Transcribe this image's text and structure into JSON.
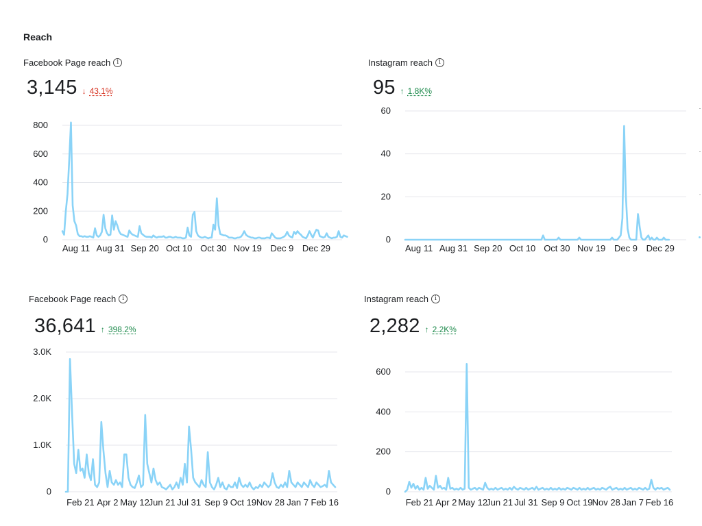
{
  "page": {
    "section_title": "Reach"
  },
  "colors": {
    "line": "#8ad3f7",
    "grid": "#e4e6eb",
    "axis_text": "#1c1e21",
    "down": "#d6311f",
    "up": "#1e8a4c"
  },
  "panels": [
    {
      "label": "Facebook Page reach",
      "value": "3,145",
      "delta_arrow": "↓",
      "delta": "43.1%",
      "delta_dir": "down"
    },
    {
      "label": "Instagram reach",
      "value": "95",
      "delta_arrow": "↑",
      "delta": "1.8K%",
      "delta_dir": "up"
    },
    {
      "label": "Facebook Page reach",
      "value": "36,641",
      "delta_arrow": "↑",
      "delta": "398.2%",
      "delta_dir": "up"
    },
    {
      "label": "Instagram reach",
      "value": "2,282",
      "delta_arrow": "↑",
      "delta": "2.2K%",
      "delta_dir": "up"
    }
  ],
  "chart_data": [
    {
      "type": "line",
      "title": "Facebook Page reach",
      "ylim": [
        0,
        800
      ],
      "yticks": [
        0,
        200,
        400,
        600,
        800
      ],
      "ytick_labels": [
        "0",
        "200",
        "400",
        "600",
        "800"
      ],
      "x_tick_labels": [
        "Aug 11",
        "Aug 31",
        "Sep 20",
        "Oct 10",
        "Oct 30",
        "Nov 19",
        "Dec 9",
        "Dec 29"
      ],
      "x_tick_positions": [
        8,
        28,
        48,
        68,
        88,
        108,
        128,
        148
      ],
      "x_range": [
        0,
        163
      ],
      "series": [
        {
          "name": "Facebook Page reach",
          "values": [
            60,
            35,
            200,
            320,
            560,
            820,
            240,
            130,
            100,
            40,
            25,
            25,
            20,
            25,
            20,
            20,
            25,
            20,
            15,
            80,
            30,
            20,
            30,
            55,
            175,
            80,
            45,
            30,
            35,
            170,
            70,
            130,
            100,
            60,
            40,
            35,
            30,
            25,
            20,
            65,
            45,
            35,
            30,
            25,
            20,
            95,
            45,
            35,
            25,
            20,
            20,
            20,
            15,
            30,
            20,
            15,
            20,
            20,
            20,
            25,
            15,
            15,
            20,
            20,
            15,
            15,
            20,
            15,
            15,
            15,
            10,
            10,
            15,
            85,
            30,
            20,
            175,
            195,
            60,
            30,
            20,
            15,
            15,
            20,
            15,
            10,
            15,
            15,
            105,
            70,
            290,
            100,
            40,
            35,
            30,
            30,
            25,
            15,
            15,
            15,
            10,
            10,
            15,
            15,
            20,
            35,
            60,
            35,
            25,
            20,
            15,
            15,
            10,
            10,
            15,
            15,
            10,
            10,
            10,
            15,
            15,
            10,
            45,
            30,
            15,
            10,
            10,
            10,
            15,
            20,
            30,
            55,
            30,
            20,
            15,
            55,
            40,
            60,
            45,
            35,
            20,
            15,
            10,
            30,
            60,
            35,
            15,
            45,
            70,
            65,
            25,
            20,
            15,
            20,
            45,
            20,
            15,
            10,
            15,
            15,
            20,
            60,
            20,
            15,
            30,
            25,
            20
          ]
        }
      ]
    },
    {
      "type": "line",
      "title": "Instagram reach",
      "ylim": [
        0,
        60
      ],
      "yticks": [
        0,
        20,
        40,
        60
      ],
      "ytick_labels": [
        "0",
        "20",
        "40",
        "60"
      ],
      "x_tick_labels": [
        "Aug 11",
        "Aug 31",
        "Sep 20",
        "Oct 10",
        "Oct 30",
        "Nov 19",
        "Dec 9",
        "Dec 29"
      ],
      "x_tick_positions": [
        8,
        28,
        48,
        68,
        88,
        108,
        128,
        148
      ],
      "x_range": [
        0,
        163
      ],
      "series": [
        {
          "name": "Instagram reach",
          "values": [
            0,
            0,
            0,
            0,
            0,
            0,
            0,
            0,
            0,
            0,
            0,
            0,
            0,
            0,
            0,
            0,
            0,
            0,
            0,
            0,
            0,
            0,
            0,
            0,
            0,
            0,
            0,
            0,
            0,
            0,
            0,
            0,
            0,
            0,
            0,
            0,
            0,
            0,
            0,
            0,
            0,
            0,
            0,
            0,
            0,
            0,
            0,
            0,
            0,
            0,
            0,
            0,
            0,
            0,
            0,
            0,
            0,
            0,
            0,
            0,
            0,
            0,
            0,
            0,
            0,
            0,
            0,
            0,
            0,
            0,
            0,
            0,
            0,
            0,
            0,
            0,
            0,
            0,
            0,
            0,
            2,
            0,
            0,
            0,
            0,
            0,
            0,
            0,
            0,
            1,
            0,
            0,
            0,
            0,
            0,
            0,
            0,
            0,
            0,
            0,
            0,
            1,
            0,
            0,
            0,
            0,
            0,
            0,
            0,
            0,
            0,
            0,
            0,
            0,
            0,
            0,
            0,
            0,
            0,
            0,
            1,
            0,
            0,
            0,
            1,
            2,
            10,
            53,
            20,
            5,
            1,
            0,
            0,
            0,
            0,
            12,
            6,
            1,
            0,
            0,
            1,
            2,
            0,
            1,
            0,
            0,
            1,
            0,
            0,
            0,
            1,
            0,
            0,
            0
          ]
        }
      ]
    },
    {
      "type": "line",
      "title": "Facebook Page reach",
      "ylim": [
        0,
        3000
      ],
      "yticks": [
        0,
        1000,
        2000,
        3000
      ],
      "ytick_labels": [
        "0",
        "1.0K",
        "2.0K",
        "3.0K"
      ],
      "x_tick_labels": [
        "Feb 21",
        "Apr 2",
        "May 12",
        "Jun 21",
        "Jul 31",
        "Sep 9",
        "Oct 19",
        "Nov 28",
        "Jan 7",
        "Feb 16"
      ],
      "x_tick_positions": [
        7,
        20,
        33,
        46,
        59,
        72,
        85,
        98,
        111,
        124
      ],
      "x_range": [
        0,
        130
      ],
      "series": [
        {
          "name": "Facebook Page reach",
          "values": [
            0,
            0,
            2850,
            1700,
            600,
            400,
            900,
            450,
            500,
            300,
            800,
            400,
            250,
            700,
            150,
            100,
            200,
            1500,
            900,
            400,
            100,
            450,
            200,
            150,
            250,
            150,
            200,
            100,
            800,
            800,
            300,
            150,
            100,
            80,
            200,
            350,
            100,
            150,
            1650,
            600,
            400,
            200,
            500,
            250,
            150,
            200,
            100,
            80,
            50,
            100,
            150,
            50,
            100,
            200,
            80,
            300,
            150,
            600,
            200,
            1400,
            900,
            300,
            200,
            150,
            100,
            250,
            150,
            100,
            850,
            200,
            100,
            50,
            150,
            300,
            100,
            200,
            80,
            50,
            150,
            100,
            100,
            200,
            80,
            300,
            150,
            100,
            150,
            100,
            200,
            100,
            50,
            100,
            80,
            150,
            100,
            200,
            150,
            100,
            150,
            400,
            200,
            100,
            80,
            150,
            100,
            200,
            100,
            450,
            200,
            150,
            100,
            200,
            150,
            100,
            200,
            150,
            100,
            250,
            150,
            100,
            200,
            150,
            100,
            120,
            150,
            100,
            450,
            200,
            150,
            100
          ]
        }
      ]
    },
    {
      "type": "line",
      "title": "Instagram reach",
      "ylim": [
        0,
        600
      ],
      "yticks": [
        0,
        200,
        400,
        600
      ],
      "ytick_labels": [
        "0",
        "200",
        "400",
        "600"
      ],
      "x_tick_labels": [
        "Feb 21",
        "Apr 2",
        "May 12",
        "Jun 21",
        "Jul 31",
        "Sep 9",
        "Oct 19",
        "Nov 28",
        "Jan 7",
        "Feb 16"
      ],
      "x_tick_positions": [
        7,
        20,
        33,
        46,
        59,
        72,
        85,
        98,
        111,
        124
      ],
      "x_range": [
        0,
        130
      ],
      "series": [
        {
          "name": "Instagram reach",
          "values": [
            0,
            10,
            50,
            20,
            40,
            15,
            30,
            10,
            20,
            10,
            70,
            15,
            30,
            20,
            10,
            80,
            20,
            30,
            15,
            20,
            10,
            70,
            15,
            20,
            10,
            15,
            10,
            20,
            10,
            15,
            640,
            20,
            10,
            15,
            20,
            10,
            20,
            15,
            10,
            45,
            20,
            10,
            15,
            10,
            20,
            10,
            15,
            20,
            10,
            15,
            10,
            20,
            10,
            25,
            15,
            10,
            20,
            15,
            10,
            20,
            10,
            15,
            20,
            10,
            25,
            10,
            15,
            20,
            10,
            15,
            10,
            20,
            10,
            15,
            10,
            20,
            10,
            15,
            10,
            20,
            15,
            10,
            20,
            15,
            10,
            20,
            10,
            15,
            10,
            20,
            10,
            15,
            20,
            10,
            15,
            10,
            20,
            15,
            10,
            20,
            25,
            10,
            15,
            20,
            10,
            15,
            10,
            20,
            10,
            15,
            20,
            10,
            15,
            10,
            20,
            15,
            10,
            20,
            10,
            15,
            60,
            20,
            10,
            20,
            15,
            20,
            10,
            15,
            20,
            10
          ]
        }
      ]
    }
  ]
}
